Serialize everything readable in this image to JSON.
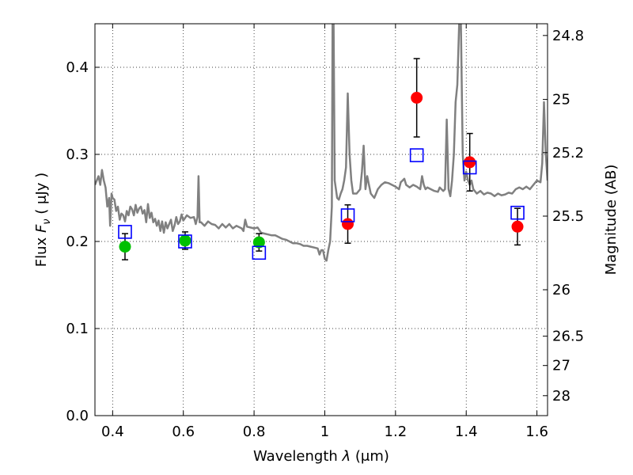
{
  "chart_data": {
    "type": "scatter",
    "xlabel_prefix": "Wavelength  ",
    "xlabel_symbol": "λ",
    "xlabel_unit": " (μm)",
    "ylabel_prefix": "Flux  ",
    "ylabel_symbol": "F",
    "ylabel_subscript": "ν",
    "ylabel_unit": "  ( μJy )",
    "y2label": "Magnitude (AB)",
    "xlim": [
      0.35,
      1.63
    ],
    "ylim": [
      0.0,
      0.45
    ],
    "grid": true,
    "x_ticks": [
      "0.4",
      "0.6",
      "0.8",
      "1",
      "1.2",
      "1.4",
      "1.6"
    ],
    "x_tick_values": [
      0.4,
      0.6,
      0.8,
      1.0,
      1.2,
      1.4,
      1.6
    ],
    "y_ticks": [
      "0.0",
      "0.1",
      "0.2",
      "0.3",
      "0.4"
    ],
    "y_tick_values": [
      0.0,
      0.1,
      0.2,
      0.3,
      0.4
    ],
    "y2_ticks": [
      "24.8",
      "25",
      "25.2",
      "25.5",
      "26",
      "26.5",
      "27",
      "28"
    ],
    "y2_tick_magnitudes": [
      24.8,
      25.0,
      25.2,
      25.5,
      26.0,
      26.5,
      27.0,
      28.0
    ],
    "colors": {
      "model": "#808080",
      "green_points": "#00c000",
      "red_points": "#ff0000",
      "model_squares": "#0000ff"
    },
    "series": [
      {
        "style": "line",
        "points": [
          [
            0.35,
            0.265
          ],
          [
            0.36,
            0.275
          ],
          [
            0.365,
            0.265
          ],
          [
            0.37,
            0.282
          ],
          [
            0.375,
            0.27
          ],
          [
            0.38,
            0.262
          ],
          [
            0.385,
            0.24
          ],
          [
            0.39,
            0.25
          ],
          [
            0.393,
            0.218
          ],
          [
            0.397,
            0.255
          ],
          [
            0.4,
            0.25
          ],
          [
            0.405,
            0.248
          ],
          [
            0.41,
            0.235
          ],
          [
            0.415,
            0.24
          ],
          [
            0.42,
            0.225
          ],
          [
            0.425,
            0.232
          ],
          [
            0.43,
            0.23
          ],
          [
            0.435,
            0.223
          ],
          [
            0.44,
            0.235
          ],
          [
            0.445,
            0.23
          ],
          [
            0.45,
            0.24
          ],
          [
            0.455,
            0.237
          ],
          [
            0.46,
            0.23
          ],
          [
            0.465,
            0.242
          ],
          [
            0.47,
            0.233
          ],
          [
            0.475,
            0.238
          ],
          [
            0.48,
            0.24
          ],
          [
            0.485,
            0.232
          ],
          [
            0.49,
            0.236
          ],
          [
            0.495,
            0.222
          ],
          [
            0.5,
            0.243
          ],
          [
            0.505,
            0.227
          ],
          [
            0.51,
            0.233
          ],
          [
            0.515,
            0.222
          ],
          [
            0.52,
            0.226
          ],
          [
            0.525,
            0.218
          ],
          [
            0.53,
            0.224
          ],
          [
            0.535,
            0.212
          ],
          [
            0.54,
            0.223
          ],
          [
            0.545,
            0.21
          ],
          [
            0.55,
            0.222
          ],
          [
            0.555,
            0.215
          ],
          [
            0.56,
            0.22
          ],
          [
            0.565,
            0.225
          ],
          [
            0.57,
            0.212
          ],
          [
            0.575,
            0.218
          ],
          [
            0.58,
            0.228
          ],
          [
            0.585,
            0.22
          ],
          [
            0.59,
            0.223
          ],
          [
            0.595,
            0.231
          ],
          [
            0.6,
            0.224
          ],
          [
            0.61,
            0.23
          ],
          [
            0.62,
            0.227
          ],
          [
            0.63,
            0.228
          ],
          [
            0.635,
            0.22
          ],
          [
            0.64,
            0.228
          ],
          [
            0.643,
            0.275
          ],
          [
            0.646,
            0.222
          ],
          [
            0.65,
            0.222
          ],
          [
            0.66,
            0.218
          ],
          [
            0.67,
            0.223
          ],
          [
            0.68,
            0.22
          ],
          [
            0.69,
            0.219
          ],
          [
            0.7,
            0.215
          ],
          [
            0.71,
            0.22
          ],
          [
            0.72,
            0.216
          ],
          [
            0.73,
            0.22
          ],
          [
            0.74,
            0.215
          ],
          [
            0.75,
            0.218
          ],
          [
            0.76,
            0.216
          ],
          [
            0.765,
            0.215
          ],
          [
            0.77,
            0.212
          ],
          [
            0.775,
            0.225
          ],
          [
            0.78,
            0.217
          ],
          [
            0.79,
            0.216
          ],
          [
            0.8,
            0.215
          ],
          [
            0.81,
            0.216
          ],
          [
            0.82,
            0.21
          ],
          [
            0.83,
            0.209
          ],
          [
            0.84,
            0.208
          ],
          [
            0.85,
            0.207
          ],
          [
            0.86,
            0.207
          ],
          [
            0.87,
            0.205
          ],
          [
            0.88,
            0.203
          ],
          [
            0.89,
            0.202
          ],
          [
            0.9,
            0.2
          ],
          [
            0.91,
            0.198
          ],
          [
            0.92,
            0.198
          ],
          [
            0.93,
            0.197
          ],
          [
            0.94,
            0.195
          ],
          [
            0.95,
            0.195
          ],
          [
            0.96,
            0.194
          ],
          [
            0.97,
            0.193
          ],
          [
            0.98,
            0.192
          ],
          [
            0.985,
            0.185
          ],
          [
            0.99,
            0.19
          ],
          [
            0.995,
            0.19
          ],
          [
            1.0,
            0.18
          ],
          [
            1.005,
            0.178
          ],
          [
            1.01,
            0.19
          ],
          [
            1.015,
            0.2
          ],
          [
            1.02,
            0.24
          ],
          [
            1.022,
            0.45
          ],
          [
            1.025,
            0.45
          ],
          [
            1.028,
            0.27
          ],
          [
            1.035,
            0.25
          ],
          [
            1.04,
            0.248
          ],
          [
            1.045,
            0.255
          ],
          [
            1.05,
            0.26
          ],
          [
            1.055,
            0.27
          ],
          [
            1.06,
            0.285
          ],
          [
            1.065,
            0.37
          ],
          [
            1.07,
            0.3
          ],
          [
            1.075,
            0.27
          ],
          [
            1.08,
            0.255
          ],
          [
            1.09,
            0.255
          ],
          [
            1.1,
            0.26
          ],
          [
            1.105,
            0.28
          ],
          [
            1.11,
            0.31
          ],
          [
            1.115,
            0.26
          ],
          [
            1.12,
            0.275
          ],
          [
            1.125,
            0.265
          ],
          [
            1.13,
            0.255
          ],
          [
            1.14,
            0.25
          ],
          [
            1.145,
            0.255
          ],
          [
            1.15,
            0.26
          ],
          [
            1.16,
            0.265
          ],
          [
            1.17,
            0.268
          ],
          [
            1.18,
            0.267
          ],
          [
            1.19,
            0.265
          ],
          [
            1.2,
            0.263
          ],
          [
            1.21,
            0.26
          ],
          [
            1.215,
            0.268
          ],
          [
            1.22,
            0.27
          ],
          [
            1.225,
            0.272
          ],
          [
            1.23,
            0.265
          ],
          [
            1.24,
            0.262
          ],
          [
            1.25,
            0.265
          ],
          [
            1.26,
            0.263
          ],
          [
            1.27,
            0.26
          ],
          [
            1.275,
            0.275
          ],
          [
            1.28,
            0.265
          ],
          [
            1.285,
            0.26
          ],
          [
            1.29,
            0.262
          ],
          [
            1.3,
            0.26
          ],
          [
            1.31,
            0.258
          ],
          [
            1.32,
            0.257
          ],
          [
            1.325,
            0.262
          ],
          [
            1.33,
            0.26
          ],
          [
            1.335,
            0.258
          ],
          [
            1.34,
            0.26
          ],
          [
            1.345,
            0.34
          ],
          [
            1.35,
            0.26
          ],
          [
            1.355,
            0.252
          ],
          [
            1.36,
            0.27
          ],
          [
            1.365,
            0.3
          ],
          [
            1.37,
            0.36
          ],
          [
            1.375,
            0.38
          ],
          [
            1.38,
            0.45
          ],
          [
            1.385,
            0.45
          ],
          [
            1.39,
            0.3
          ],
          [
            1.395,
            0.27
          ],
          [
            1.4,
            0.28
          ],
          [
            1.405,
            0.27
          ],
          [
            1.41,
            0.265
          ],
          [
            1.415,
            0.27
          ],
          [
            1.42,
            0.26
          ],
          [
            1.43,
            0.255
          ],
          [
            1.44,
            0.258
          ],
          [
            1.45,
            0.254
          ],
          [
            1.46,
            0.256
          ],
          [
            1.47,
            0.255
          ],
          [
            1.48,
            0.252
          ],
          [
            1.49,
            0.255
          ],
          [
            1.5,
            0.253
          ],
          [
            1.51,
            0.254
          ],
          [
            1.52,
            0.256
          ],
          [
            1.53,
            0.255
          ],
          [
            1.54,
            0.26
          ],
          [
            1.55,
            0.262
          ],
          [
            1.56,
            0.26
          ],
          [
            1.57,
            0.263
          ],
          [
            1.58,
            0.26
          ],
          [
            1.59,
            0.265
          ],
          [
            1.6,
            0.27
          ],
          [
            1.61,
            0.268
          ],
          [
            1.615,
            0.29
          ],
          [
            1.62,
            0.36
          ],
          [
            1.625,
            0.3
          ],
          [
            1.63,
            0.27
          ]
        ]
      },
      {
        "style": "circle",
        "color_key": "green_points",
        "points": [
          {
            "x": 0.435,
            "y": 0.194,
            "err": 0.015
          },
          {
            "x": 0.605,
            "y": 0.201,
            "err": 0.01
          },
          {
            "x": 0.814,
            "y": 0.199,
            "err": 0.01
          }
        ]
      },
      {
        "style": "circle",
        "color_key": "red_points",
        "points": [
          {
            "x": 1.065,
            "y": 0.22,
            "err": 0.022
          },
          {
            "x": 1.26,
            "y": 0.365,
            "err": 0.045
          },
          {
            "x": 1.41,
            "y": 0.291,
            "err": 0.033
          },
          {
            "x": 1.545,
            "y": 0.217,
            "err": 0.021
          }
        ]
      },
      {
        "style": "square",
        "color_key": "model_squares",
        "points": [
          {
            "x": 0.435,
            "y": 0.211
          },
          {
            "x": 0.605,
            "y": 0.2
          },
          {
            "x": 0.814,
            "y": 0.187
          },
          {
            "x": 1.065,
            "y": 0.23
          },
          {
            "x": 1.26,
            "y": 0.299
          },
          {
            "x": 1.41,
            "y": 0.285
          },
          {
            "x": 1.545,
            "y": 0.233
          }
        ]
      }
    ]
  }
}
